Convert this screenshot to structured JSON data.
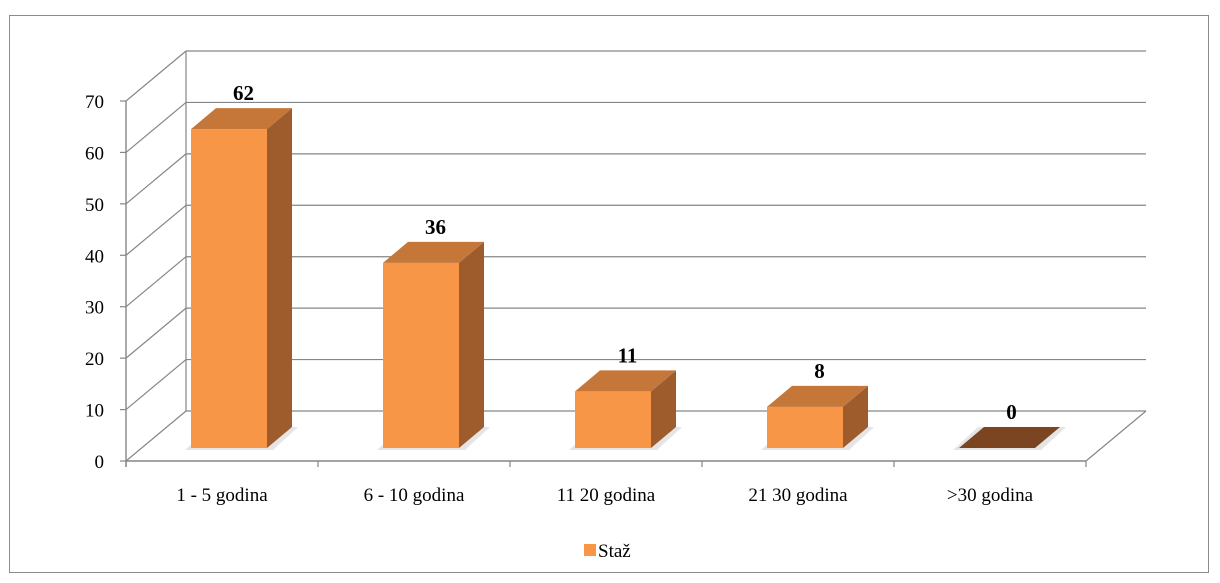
{
  "chart_data": {
    "type": "bar",
    "style": "3d-column",
    "categories": [
      "1 - 5 godina",
      "6 - 10 godina",
      "11 20 godina",
      "21 30 godina",
      ">30 godina"
    ],
    "series": [
      {
        "name": "Staž",
        "values": [
          62,
          36,
          11,
          8,
          0
        ]
      }
    ],
    "data_labels": [
      "62",
      "36",
      "11",
      "8",
      "0"
    ],
    "title": "",
    "xlabel": "",
    "ylabel": "",
    "ylim": [
      0,
      70
    ],
    "yticks": [
      "0",
      "10",
      "20",
      "30",
      "40",
      "50",
      "60",
      "70"
    ],
    "grid": true,
    "legend_position": "bottom",
    "colors": {
      "front": "#f79646",
      "top": "#c5773a",
      "side": "#9e5b2c",
      "zero_bar": "#7a4520",
      "grid": "#868686"
    }
  }
}
